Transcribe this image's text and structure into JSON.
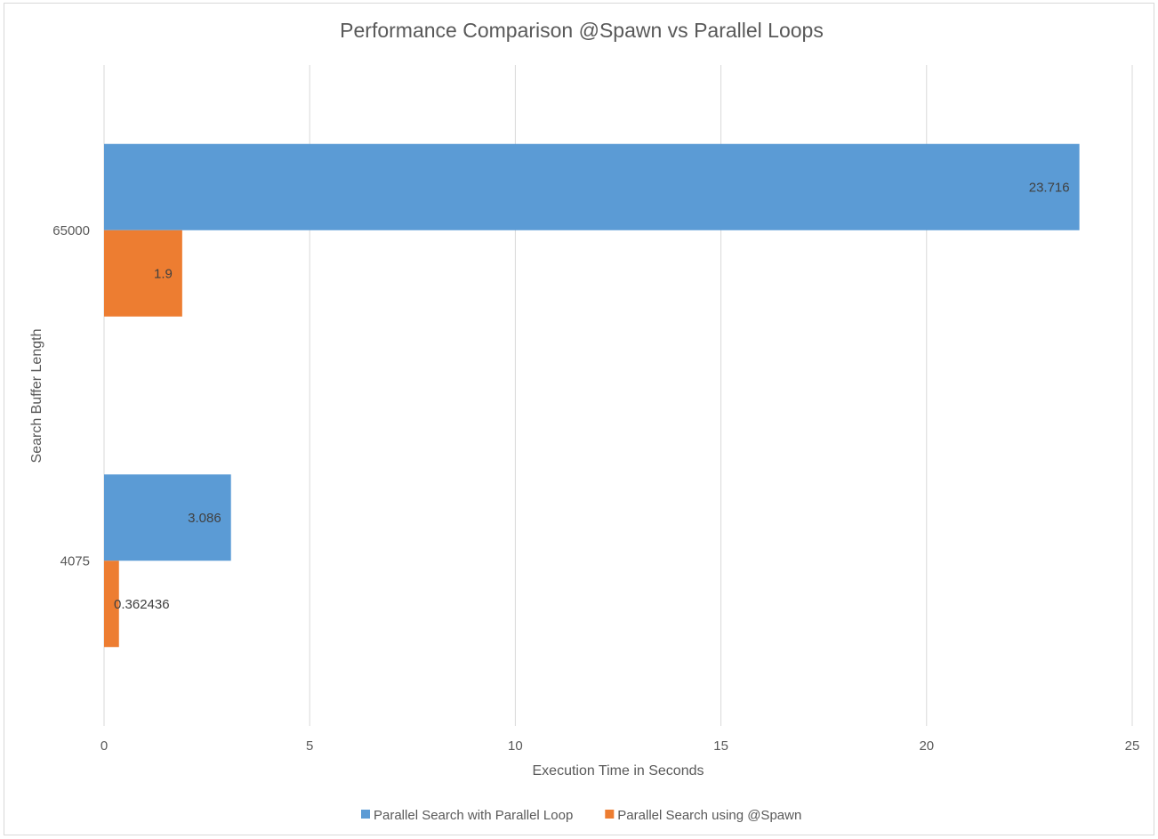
{
  "chart_data": {
    "type": "bar",
    "orientation": "horizontal",
    "title": "Performance Comparison @Spawn vs Parallel Loops",
    "xlabel": "Execution Time in Seconds",
    "ylabel": "Search Buffer Length",
    "categories": [
      "65000",
      "4075"
    ],
    "series": [
      {
        "name": "Parallel Search with Parallel Loop",
        "color": "#5b9bd5",
        "values": [
          23.716,
          3.086
        ],
        "labels": [
          "23.716",
          "3.086"
        ]
      },
      {
        "name": "Parallel Search using @Spawn",
        "color": "#ed7d31",
        "values": [
          1.9,
          0.362436
        ],
        "labels": [
          "1.9",
          "0.362436"
        ]
      }
    ],
    "xlim": [
      0,
      25
    ],
    "xticks": [
      0,
      5,
      10,
      15,
      20,
      25
    ],
    "grid": "vertical",
    "legend_position": "bottom"
  }
}
